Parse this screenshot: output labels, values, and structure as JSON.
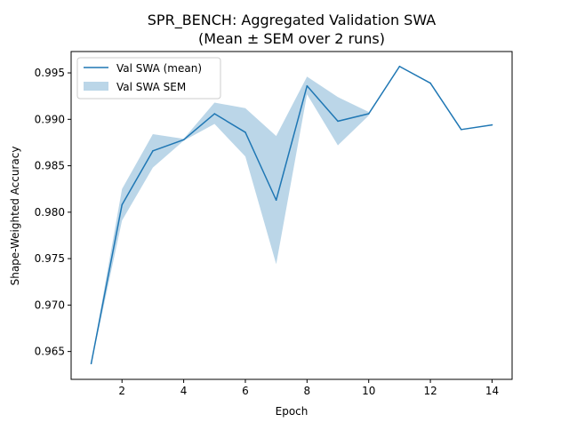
{
  "chart_data": {
    "type": "line",
    "title": "SPR_BENCH: Aggregated Validation SWA",
    "subtitle": "(Mean ± SEM over 2 runs)",
    "xlabel": "Epoch",
    "ylabel": "Shape-Weighted Accuracy",
    "xlim": [
      0.35,
      14.65
    ],
    "ylim": [
      0.962,
      0.9973
    ],
    "xticks": [
      2,
      4,
      6,
      8,
      10,
      12,
      14
    ],
    "xtick_labels": [
      "2",
      "4",
      "6",
      "8",
      "10",
      "12",
      "14"
    ],
    "yticks": [
      0.965,
      0.97,
      0.975,
      0.98,
      0.985,
      0.99,
      0.995
    ],
    "ytick_labels": [
      "0.965",
      "0.970",
      "0.975",
      "0.980",
      "0.985",
      "0.990",
      "0.995"
    ],
    "grid": false,
    "legend_position": "upper-left",
    "colors": {
      "line": "#1f77b4",
      "band": "#1f77b4",
      "band_opacity": 0.3
    },
    "series": [
      {
        "name": "Val SWA (mean)",
        "kind": "line",
        "x": [
          1,
          2,
          3,
          4,
          5,
          6,
          7,
          8,
          9,
          10,
          11,
          12,
          13,
          14
        ],
        "y": [
          0.9637,
          0.9808,
          0.9866,
          0.9878,
          0.9906,
          0.9886,
          0.9813,
          0.9936,
          0.9898,
          0.9906,
          0.9957,
          0.9939,
          0.9889,
          0.9894
        ]
      },
      {
        "name": "Val SWA SEM",
        "kind": "band",
        "x": [
          1,
          2,
          3,
          4,
          5,
          6,
          7,
          8,
          9,
          10
        ],
        "lower": [
          0.9636,
          0.9791,
          0.9848,
          0.9877,
          0.9895,
          0.986,
          0.9744,
          0.9927,
          0.9872,
          0.9904
        ],
        "upper": [
          0.9638,
          0.9825,
          0.9884,
          0.9879,
          0.9918,
          0.9912,
          0.9882,
          0.9946,
          0.9924,
          0.9908
        ]
      }
    ]
  }
}
